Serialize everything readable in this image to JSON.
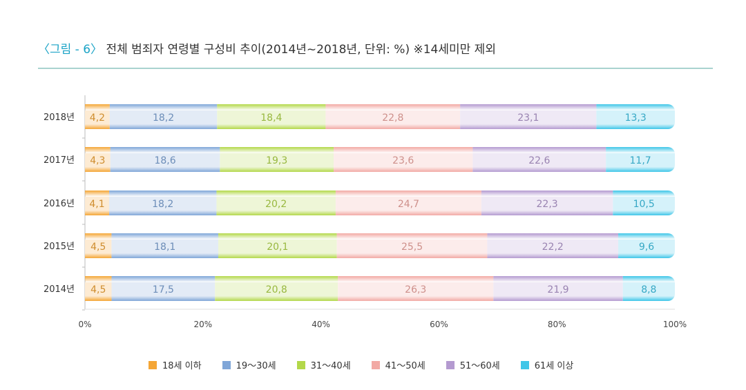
{
  "title": {
    "figure_label": "〈그림 - 6〉",
    "text": "전체 범죄자 연령별 구성비 추이(2014년~2018년, 단위: %) ※14세미만 제외"
  },
  "chart_data": {
    "type": "bar",
    "orientation": "horizontal",
    "stacked": true,
    "categories": [
      "2018년",
      "2017년",
      "2016년",
      "2015년",
      "2014년"
    ],
    "series": [
      {
        "name": "18세 이하",
        "color": "#f4a636",
        "values": [
          4.2,
          4.3,
          4.1,
          4.5,
          4.5
        ],
        "labels": [
          "4,2",
          "4,3",
          "4,1",
          "4,5",
          "4,5"
        ]
      },
      {
        "name": "19～30세",
        "color": "#7fa6d8",
        "values": [
          18.2,
          18.6,
          18.2,
          18.1,
          17.5
        ],
        "labels": [
          "18,2",
          "18,6",
          "18,2",
          "18,1",
          "17,5"
        ]
      },
      {
        "name": "31～40세",
        "color": "#b3d84a",
        "values": [
          18.4,
          19.3,
          20.2,
          20.1,
          20.8
        ],
        "labels": [
          "18,4",
          "19,3",
          "20,2",
          "20,1",
          "20,8"
        ]
      },
      {
        "name": "41～50세",
        "color": "#f2a9a4",
        "values": [
          22.8,
          23.6,
          24.7,
          25.5,
          26.3
        ],
        "labels": [
          "22,8",
          "23,6",
          "24,7",
          "25,5",
          "26,3"
        ]
      },
      {
        "name": "51～60세",
        "color": "#b49ad0",
        "values": [
          23.1,
          22.6,
          22.3,
          22.2,
          21.9
        ],
        "labels": [
          "23,1",
          "22,6",
          "22,3",
          "22,2",
          "21,9"
        ]
      },
      {
        "name": "61세 이상",
        "color": "#3fc6e8",
        "values": [
          13.3,
          11.7,
          10.5,
          9.6,
          8.8
        ],
        "labels": [
          "13,3",
          "11,7",
          "10,5",
          "9,6",
          "8,8"
        ]
      }
    ],
    "xlim": [
      0,
      100
    ],
    "xticks": [
      "0%",
      "20%",
      "40%",
      "60%",
      "80%",
      "100%"
    ],
    "legend": "bottom",
    "grid": false
  }
}
